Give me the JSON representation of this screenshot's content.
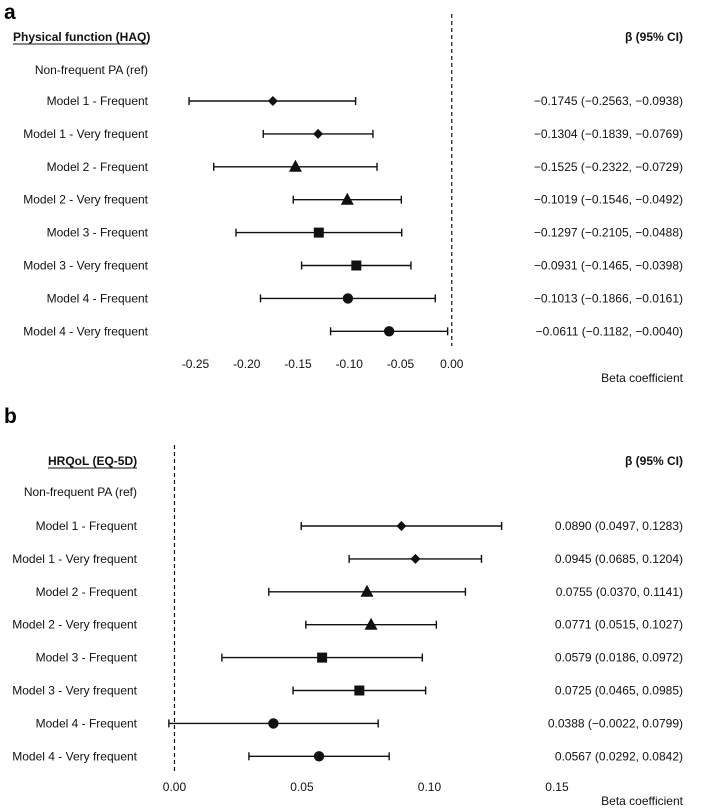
{
  "chart_data": [
    {
      "type": "forest",
      "panel_label": "a",
      "title": "Physical function (HAQ)",
      "ci_header": "β (95% CI)",
      "reference_row": "Non-frequent PA (ref)",
      "xlabel": "Beta coefficient",
      "xlim": [
        -0.27,
        0.01
      ],
      "zero_line": 0,
      "ticks": [
        -0.25,
        -0.2,
        -0.15,
        -0.1,
        -0.05,
        0.0
      ],
      "tick_labels": [
        "-0.25",
        "-0.20",
        "-0.15",
        "-0.10",
        "-0.05",
        "0.00"
      ],
      "rows": [
        {
          "label": "Model 1 - Frequent",
          "marker": "diamond",
          "beta": -0.1745,
          "lower": -0.2563,
          "upper": -0.0938,
          "ci_text": "−0.1745 (−0.2563, −0.0938)"
        },
        {
          "label": "Model 1 - Very frequent",
          "marker": "diamond",
          "beta": -0.1304,
          "lower": -0.1839,
          "upper": -0.0769,
          "ci_text": "−0.1304 (−0.1839, −0.0769)"
        },
        {
          "label": "Model 2 - Frequent",
          "marker": "triangle",
          "beta": -0.1525,
          "lower": -0.2322,
          "upper": -0.0729,
          "ci_text": "−0.1525 (−0.2322, −0.0729)"
        },
        {
          "label": "Model 2 - Very frequent",
          "marker": "triangle",
          "beta": -0.1019,
          "lower": -0.1546,
          "upper": -0.0492,
          "ci_text": "−0.1019 (−0.1546, −0.0492)"
        },
        {
          "label": "Model 3 - Frequent",
          "marker": "square",
          "beta": -0.1297,
          "lower": -0.2105,
          "upper": -0.0488,
          "ci_text": "−0.1297 (−0.2105, −0.0488)"
        },
        {
          "label": "Model 3 - Very frequent",
          "marker": "square",
          "beta": -0.0931,
          "lower": -0.1465,
          "upper": -0.0398,
          "ci_text": "−0.0931 (−0.1465, −0.0398)"
        },
        {
          "label": "Model 4 - Frequent",
          "marker": "circle",
          "beta": -0.1013,
          "lower": -0.1866,
          "upper": -0.0161,
          "ci_text": "−0.1013 (−0.1866, −0.0161)"
        },
        {
          "label": "Model 4 - Very frequent",
          "marker": "circle",
          "beta": -0.0611,
          "lower": -0.1182,
          "upper": -0.004,
          "ci_text": "−0.0611 (−0.1182, −0.0040)"
        }
      ]
    },
    {
      "type": "forest",
      "panel_label": "b",
      "title": "HRQoL (EQ-5D)",
      "ci_header": "β (95% CI)",
      "reference_row": "Non-frequent PA (ref)",
      "xlabel": "Beta coefficient",
      "xlim": [
        -0.0045,
        0.161
      ],
      "zero_line": 0,
      "ticks": [
        0.0,
        0.05,
        0.1,
        0.15
      ],
      "tick_labels": [
        "0.00",
        "0.05",
        "0.10",
        "0.15"
      ],
      "rows": [
        {
          "label": "Model 1 - Frequent",
          "marker": "diamond",
          "beta": 0.089,
          "lower": 0.0497,
          "upper": 0.1283,
          "ci_text": "0.0890 (0.0497, 0.1283)"
        },
        {
          "label": "Model 1 - Very frequent",
          "marker": "diamond",
          "beta": 0.0945,
          "lower": 0.0685,
          "upper": 0.1204,
          "ci_text": "0.0945 (0.0685, 0.1204)"
        },
        {
          "label": "Model 2 - Frequent",
          "marker": "triangle",
          "beta": 0.0755,
          "lower": 0.037,
          "upper": 0.1141,
          "ci_text": "0.0755 (0.0370, 0.1141)"
        },
        {
          "label": "Model 2 - Very frequent",
          "marker": "triangle",
          "beta": 0.0771,
          "lower": 0.0515,
          "upper": 0.1027,
          "ci_text": "0.0771 (0.0515, 0.1027)"
        },
        {
          "label": "Model 3 - Frequent",
          "marker": "square",
          "beta": 0.0579,
          "lower": 0.0186,
          "upper": 0.0972,
          "ci_text": "0.0579 (0.0186, 0.0972)"
        },
        {
          "label": "Model 3 - Very frequent",
          "marker": "square",
          "beta": 0.0725,
          "lower": 0.0465,
          "upper": 0.0985,
          "ci_text": "0.0725 (0.0465, 0.0985)"
        },
        {
          "label": "Model 4 - Frequent",
          "marker": "circle",
          "beta": 0.0388,
          "lower": -0.0022,
          "upper": 0.0799,
          "ci_text": "0.0388 (−0.0022, 0.0799)"
        },
        {
          "label": "Model 4 - Very frequent",
          "marker": "circle",
          "beta": 0.0567,
          "lower": 0.0292,
          "upper": 0.0842,
          "ci_text": "0.0567 (0.0292, 0.0842)"
        }
      ]
    }
  ]
}
